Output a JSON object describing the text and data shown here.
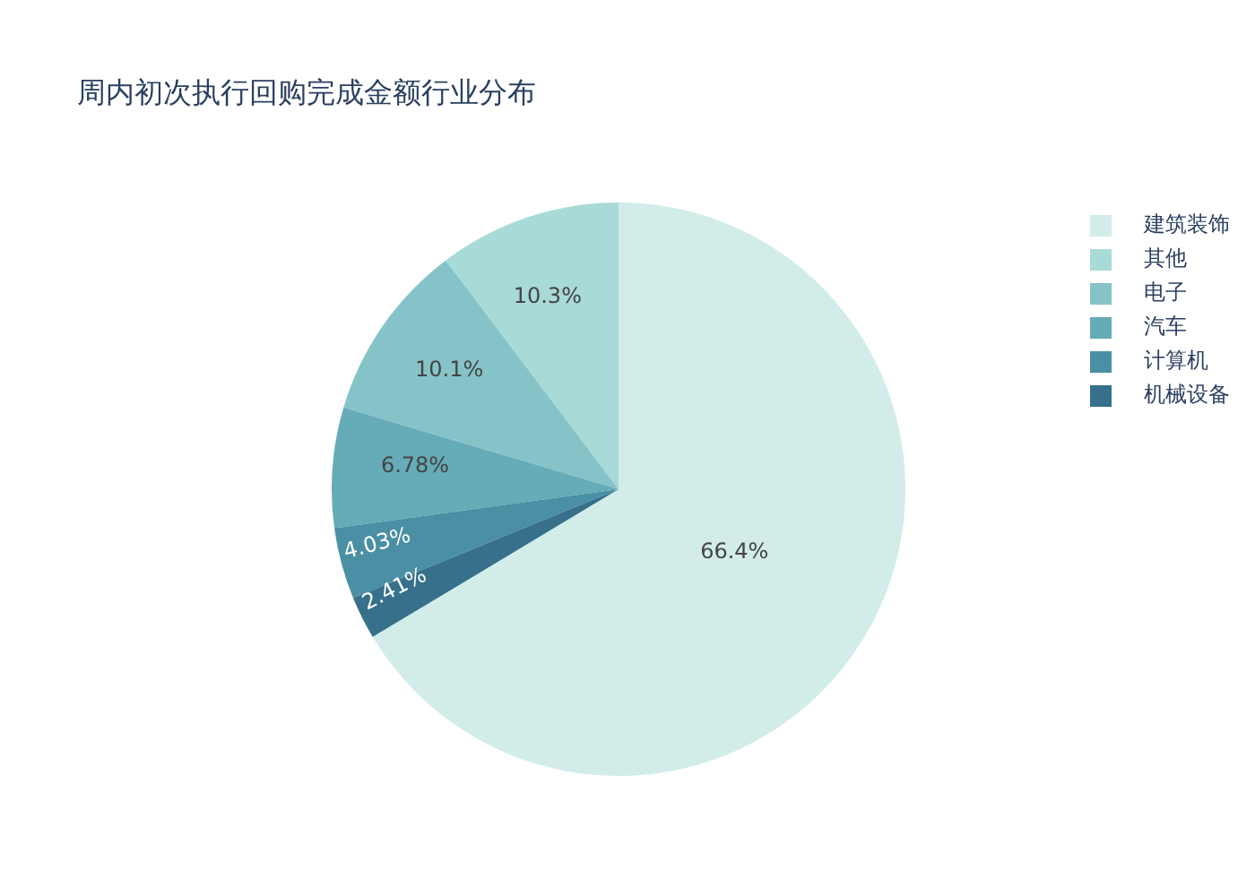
{
  "chart_data": {
    "type": "pie",
    "title": "周内初次执行回购完成金额行业分布",
    "categories": [
      "建筑装饰",
      "其他",
      "电子",
      "汽车",
      "计算机",
      "机械设备"
    ],
    "values": [
      66.4,
      10.3,
      10.1,
      6.78,
      4.03,
      2.41
    ],
    "value_labels": [
      "66.4%",
      "10.3%",
      "10.1%",
      "6.78%",
      "4.03%",
      "2.41%"
    ],
    "colors": [
      "#d2ede9",
      "#a8dad8",
      "#86c3c8",
      "#65abb8",
      "#4a8fa3",
      "#36708a"
    ],
    "legend": "top right"
  }
}
